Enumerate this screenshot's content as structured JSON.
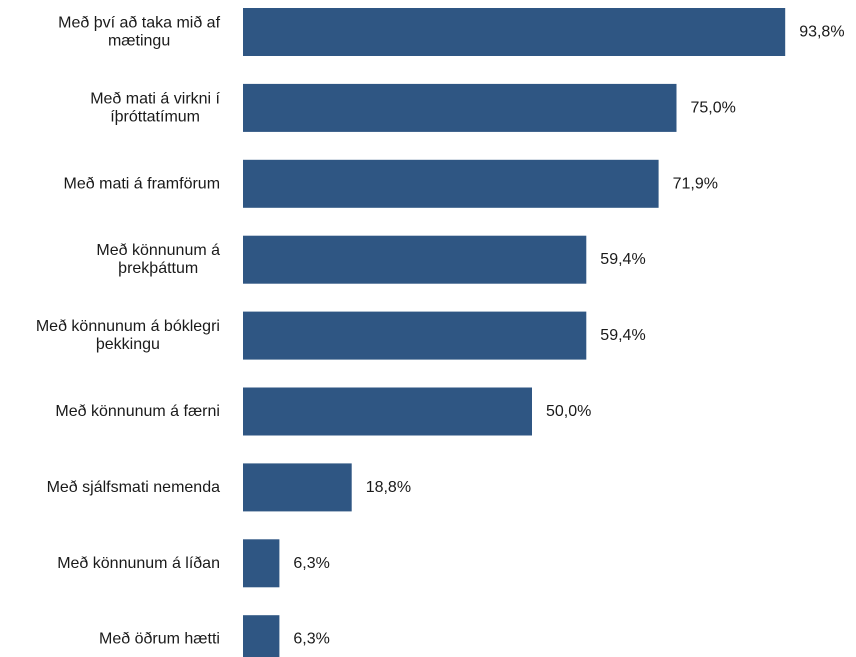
{
  "chart_data": {
    "type": "bar",
    "orientation": "horizontal",
    "categories": [
      [
        "Með því að taka mið af",
        "mætingu"
      ],
      [
        "Með mati á virkni í",
        "íþróttatímum"
      ],
      [
        "Með mati á framförum"
      ],
      [
        "Með könnunum á",
        "þrekþáttum"
      ],
      [
        "Með könnunum á bóklegri",
        "þekkingu"
      ],
      [
        "Með könnunum á færni"
      ],
      [
        "Með sjálfsmati nemenda"
      ],
      [
        "Með könnunum á líðan"
      ],
      [
        "Með öðrum hætti"
      ]
    ],
    "values": [
      93.8,
      75.0,
      71.9,
      59.4,
      59.4,
      50.0,
      18.8,
      6.3,
      6.3
    ],
    "data_labels": [
      "93,8%",
      "75,0%",
      "71,9%",
      "59,4%",
      "59,4%",
      "50,0%",
      "18,8%",
      "6,3%",
      "6,3%"
    ],
    "xlim": [
      0,
      100
    ],
    "grid": false,
    "bar_color": "#2f5683",
    "title": "",
    "xlabel": "",
    "ylabel": ""
  }
}
